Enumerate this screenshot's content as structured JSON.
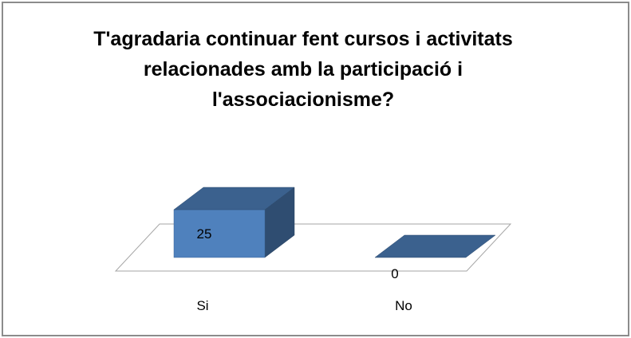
{
  "chart_data": {
    "type": "bar3d",
    "title": "T'agradaria continuar fent cursos i activitats relacionades amb la participació i l'associacionisme?",
    "categories": [
      "Si",
      "No"
    ],
    "values": [
      25,
      0
    ],
    "color": "#4f81bd"
  }
}
